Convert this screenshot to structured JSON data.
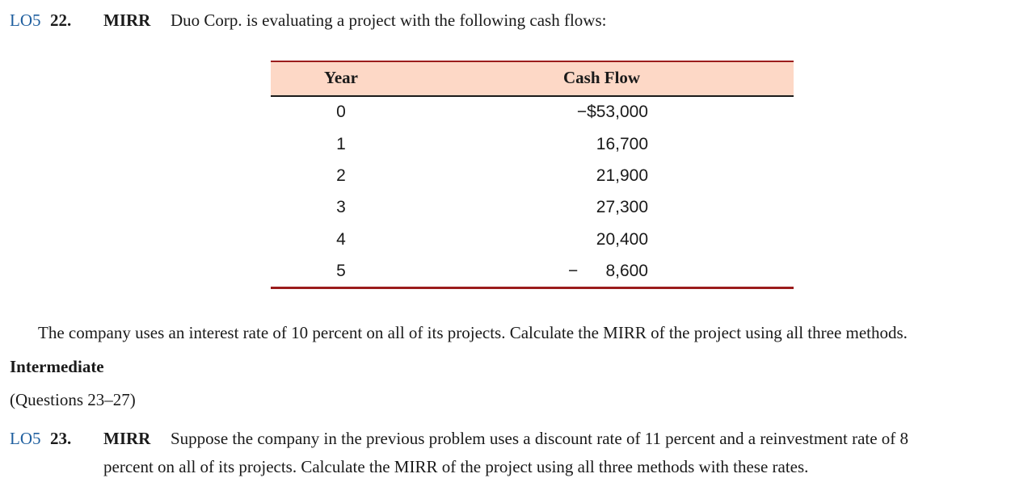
{
  "problem22": {
    "lo": "LO5",
    "number": "22.",
    "topic": "MIRR",
    "intro": "Duo Corp. is evaluating a project with the following cash flows:",
    "table": {
      "headers": [
        "Year",
        "Cash Flow"
      ],
      "rows": [
        {
          "year": "0",
          "cash_flow": "−$53,000"
        },
        {
          "year": "1",
          "cash_flow": "16,700"
        },
        {
          "year": "2",
          "cash_flow": "21,900"
        },
        {
          "year": "3",
          "cash_flow": "27,300"
        },
        {
          "year": "4",
          "cash_flow": "20,400"
        },
        {
          "year": "5",
          "sign": "−",
          "cash_flow": "8,600"
        }
      ]
    },
    "body": "The company uses an interest rate of 10 percent on all of its projects. Calculate the MIRR of the project using all three methods."
  },
  "section": {
    "title": "Intermediate",
    "subtitle": "(Questions 23–27)"
  },
  "problem23": {
    "lo": "LO5",
    "number": "23.",
    "topic": "MIRR",
    "line1": "Suppose the company in the previous problem uses a discount rate of 11 percent and a reinvestment rate of 8",
    "line2": "percent on all of its projects. Calculate the MIRR of the project using all three methods with these rates."
  }
}
